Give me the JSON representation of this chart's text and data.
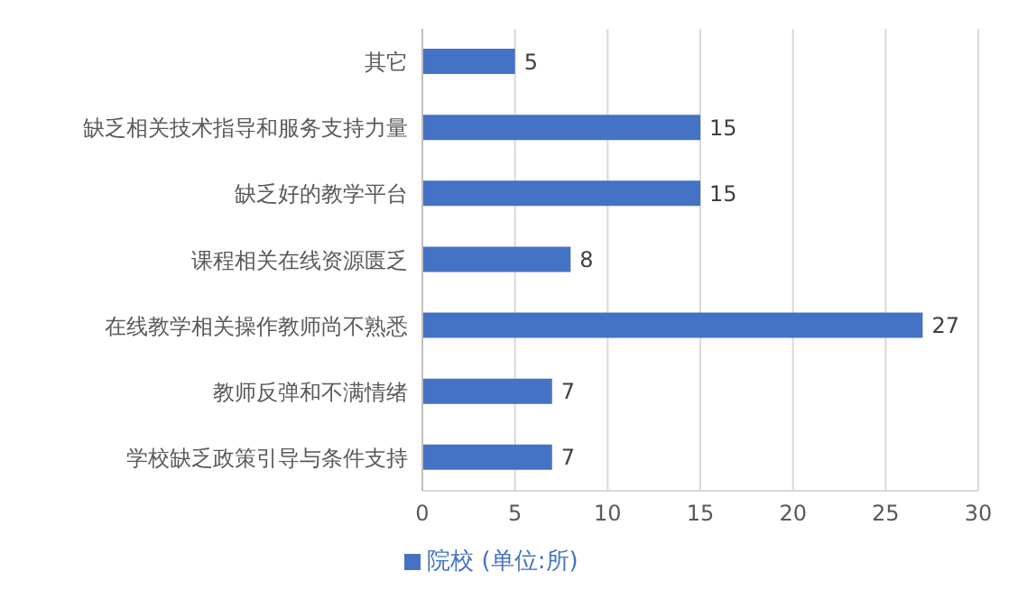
{
  "chart_data": {
    "type": "bar",
    "orientation": "horizontal",
    "categories": [
      "其它",
      "缺乏相关技术指导和服务支持力量",
      "缺乏好的教学平台",
      "课程相关在线资源匮乏",
      "在线教学相关操作教师尚不熟悉",
      "教师反弹和不满情绪",
      "学校缺乏政策引导与条件支持"
    ],
    "series": [
      {
        "name": "院校 (单位:所)",
        "color": "#4472c4",
        "values": [
          5,
          15,
          15,
          8,
          27,
          7,
          7
        ]
      }
    ],
    "xlim": [
      0,
      30
    ],
    "xticks": [
      0,
      5,
      10,
      15,
      20,
      25,
      30
    ],
    "grid": "x",
    "legend": "bottom",
    "data_labels": true
  }
}
